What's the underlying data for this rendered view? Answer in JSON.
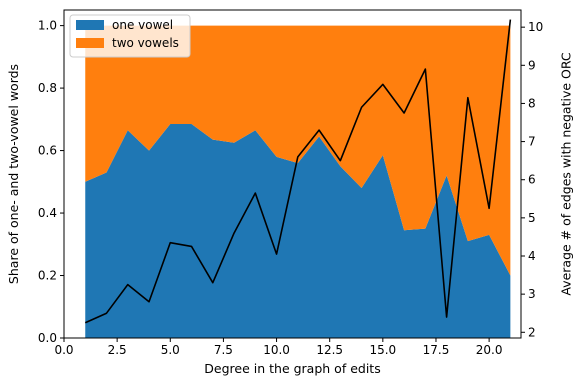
{
  "chart_data": {
    "type": "area",
    "xlabel": "Degree in the graph of edits",
    "ylabel_left": "Share of one- and two-vowel words",
    "ylabel_right": "Average # of edges with negative ORC",
    "xlim": [
      0,
      21.5
    ],
    "ylim_left": [
      0,
      1.05
    ],
    "ylim_right": [
      1.85,
      10.45
    ],
    "x_ticks": [
      0.0,
      2.5,
      5.0,
      7.5,
      10.0,
      12.5,
      15.0,
      17.5,
      20.0
    ],
    "x_tick_labels": [
      "0.0",
      "2.5",
      "5.0",
      "7.5",
      "10.0",
      "12.5",
      "15.0",
      "17.5",
      "20.0"
    ],
    "y_ticks_left": [
      0.0,
      0.2,
      0.4,
      0.6,
      0.8,
      1.0
    ],
    "y_tick_labels_left": [
      "0.0",
      "0.2",
      "0.4",
      "0.6",
      "0.8",
      "1.0"
    ],
    "y_ticks_right": [
      2,
      3,
      4,
      5,
      6,
      7,
      8,
      9,
      10
    ],
    "y_tick_labels_right": [
      "2",
      "3",
      "4",
      "5",
      "6",
      "7",
      "8",
      "9",
      "10"
    ],
    "x": [
      1,
      2,
      3,
      4,
      5,
      6,
      7,
      8,
      9,
      10,
      11,
      12,
      13,
      14,
      15,
      16,
      17,
      18,
      19,
      20,
      21
    ],
    "series": [
      {
        "name": "one vowel",
        "axis": "left",
        "kind": "stacked-area",
        "color": "#1f77b4",
        "values": [
          0.5,
          0.53,
          0.665,
          0.6,
          0.685,
          0.685,
          0.635,
          0.625,
          0.665,
          0.58,
          0.56,
          0.645,
          0.55,
          0.48,
          0.585,
          0.345,
          0.35,
          0.52,
          0.31,
          0.33,
          0.2
        ]
      },
      {
        "name": "two vowels",
        "axis": "left",
        "kind": "stacked-area",
        "color": "#ff7f0e",
        "values": [
          0.5,
          0.47,
          0.335,
          0.4,
          0.315,
          0.315,
          0.365,
          0.375,
          0.335,
          0.42,
          0.44,
          0.355,
          0.45,
          0.52,
          0.415,
          0.655,
          0.65,
          0.48,
          0.69,
          0.67,
          0.8
        ]
      },
      {
        "axis": "right",
        "kind": "line",
        "color": "#000000",
        "values": [
          2.25,
          2.5,
          3.25,
          2.8,
          4.35,
          4.25,
          3.3,
          4.6,
          5.65,
          4.05,
          6.6,
          7.3,
          6.5,
          7.9,
          8.5,
          7.75,
          8.9,
          2.4,
          8.15,
          5.25,
          10.2
        ]
      }
    ],
    "legend": {
      "placement": "top-left",
      "entries": [
        {
          "label": "one vowel",
          "color": "#1f77b4"
        },
        {
          "label": "two vowels",
          "color": "#ff7f0e"
        }
      ]
    },
    "grid": false
  }
}
